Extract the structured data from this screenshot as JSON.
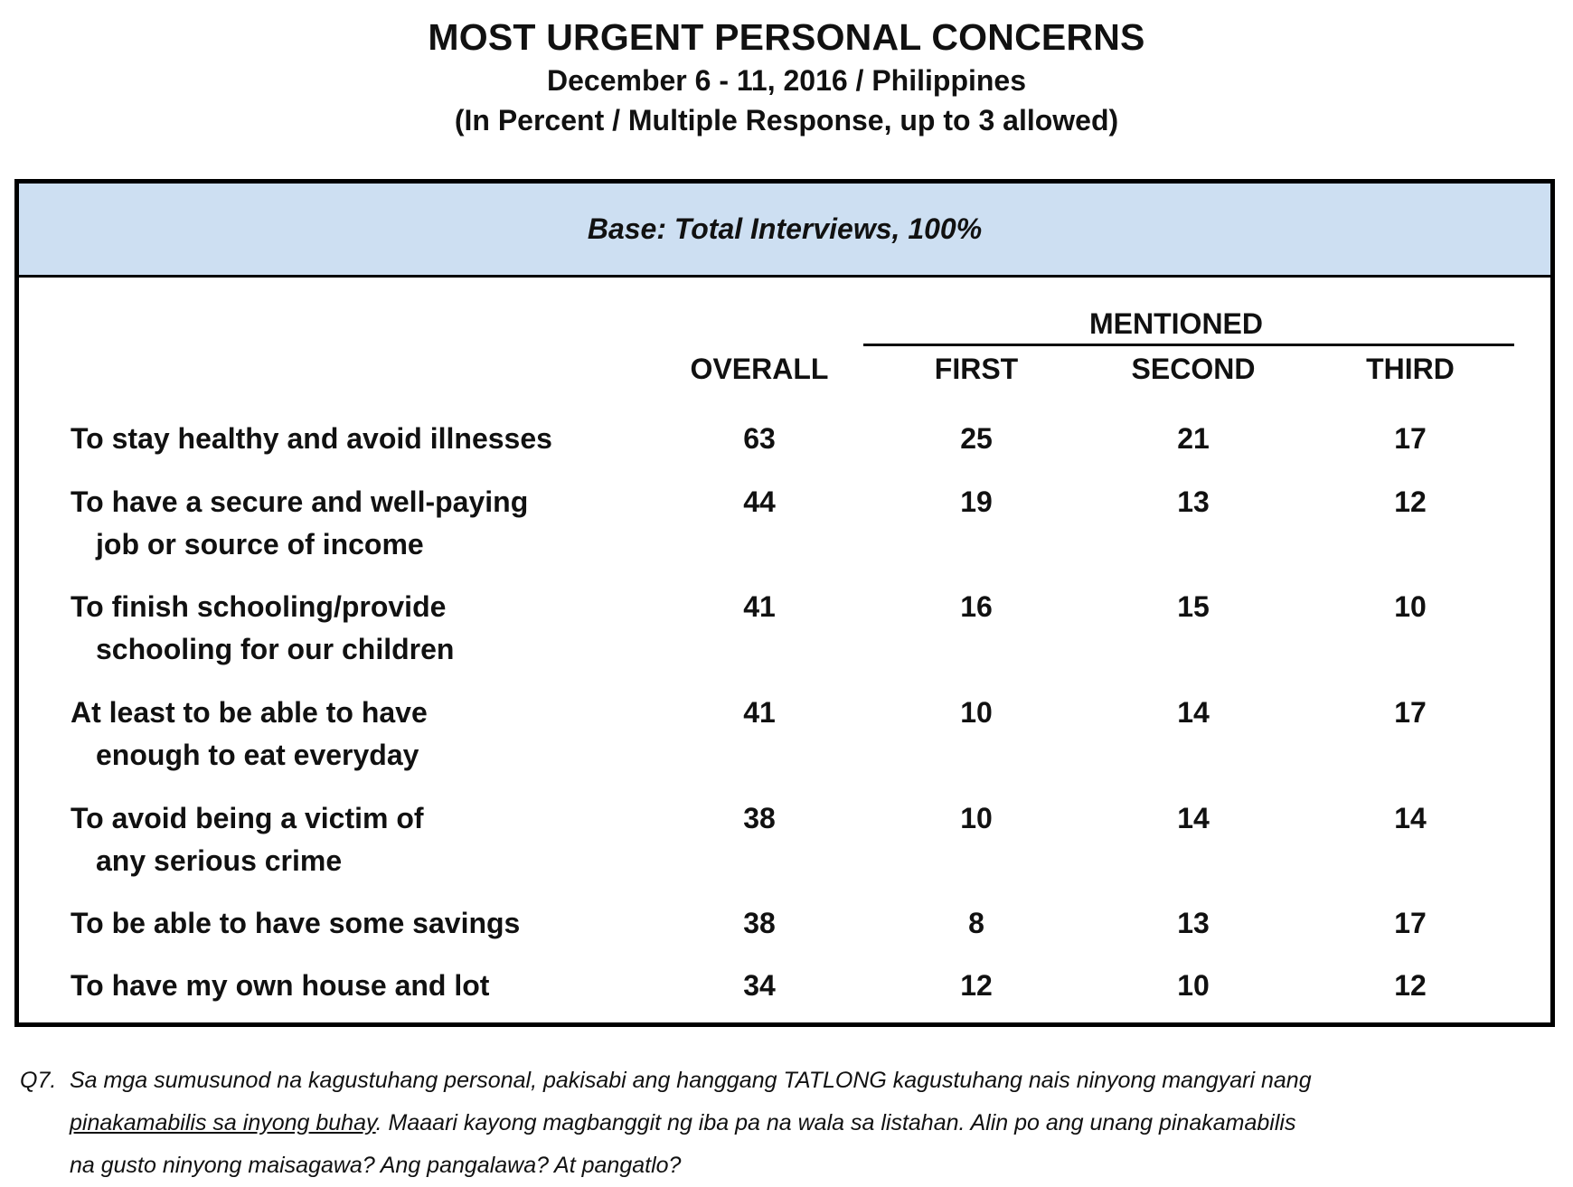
{
  "chart_data": {
    "type": "table",
    "title": "MOST URGENT PERSONAL CONCERNS",
    "subtitle_1": "December 6 - 11, 2016 / Philippines",
    "subtitle_2": "(In Percent / Multiple Response, up to 3 allowed)",
    "base": "Base: Total Interviews, 100%",
    "group_header": "MENTIONED",
    "columns": [
      "OVERALL",
      "FIRST",
      "SECOND",
      "THIRD"
    ],
    "rows": [
      {
        "label_1": "To stay healthy and avoid illnesses",
        "label_2": "",
        "values": [
          "63",
          "25",
          "21",
          "17"
        ]
      },
      {
        "label_1": "To have a secure and well-paying",
        "label_2": "job or source of income",
        "values": [
          "44",
          "19",
          "13",
          "12"
        ]
      },
      {
        "label_1": "To finish schooling/provide",
        "label_2": "schooling for our children",
        "values": [
          "41",
          "16",
          "15",
          "10"
        ]
      },
      {
        "label_1": "At least to be able to have",
        "label_2": "enough to eat everyday",
        "values": [
          "41",
          "10",
          "14",
          "17"
        ]
      },
      {
        "label_1": "To avoid being a victim of",
        "label_2": "any serious crime",
        "values": [
          "38",
          "10",
          "14",
          "14"
        ]
      },
      {
        "label_1": "To be able to have some savings",
        "label_2": "",
        "values": [
          "38",
          "8",
          "13",
          "17"
        ]
      },
      {
        "label_1": "To have my own house and lot",
        "label_2": "",
        "values": [
          "34",
          "12",
          "10",
          "12"
        ]
      }
    ],
    "colors": {
      "base_band": "#cddff2",
      "border": "#000000"
    }
  },
  "footnote": {
    "q": "Q7.",
    "line1": "Sa mga sumusunod na kagustuhang personal, pakisabi ang hanggang TATLONG kagustuhang nais ninyong mangyari nang",
    "line2_underlined": "pinakamabilis sa inyong buhay",
    "line2_rest": ".  Maaari kayong magbanggit ng iba pa na wala sa listahan. Alin po ang unang pinakamabilis",
    "line3": "na gusto ninyong maisagawa? Ang pangalawa? At pangatlo?"
  }
}
